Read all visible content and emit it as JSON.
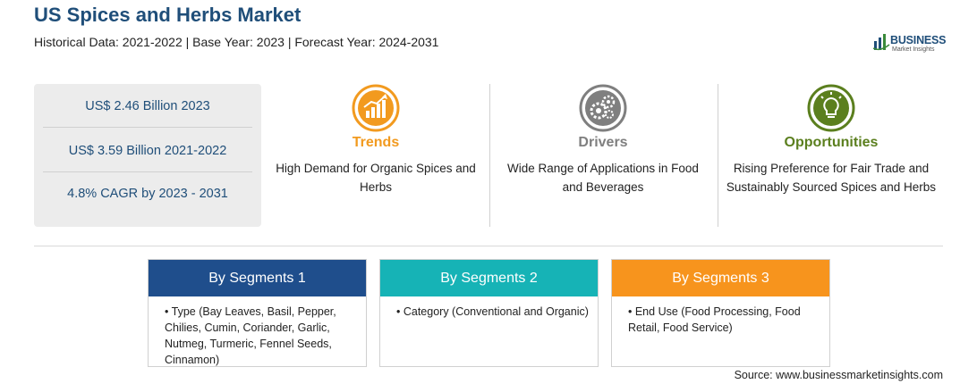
{
  "header": {
    "title": "US Spices and Herbs Market",
    "subtitle": "Historical Data: 2021-2022 | Base Year: 2023 | Forecast Year: 2024-2031"
  },
  "logo": {
    "name": "BUSINESS",
    "tagline": "Market Insights"
  },
  "stats": [
    "US$ 2.46 Billion 2023",
    "US$ 3.59 Billion 2021-2022",
    "4.8% CAGR by 2023 - 2031"
  ],
  "columns": [
    {
      "heading": "Trends",
      "text": "High Demand for Organic Spices and Herbs",
      "color": "#f29a1f",
      "icon": "chart-growth-icon"
    },
    {
      "heading": "Drivers",
      "text": "Wide Range of Applications in Food and Beverages",
      "color": "#7f7f7f",
      "icon": "gears-icon"
    },
    {
      "heading": "Opportunities",
      "text": "Rising Preference for Fair Trade and Sustainably Sourced Spices and Herbs",
      "color": "#5b7f1e",
      "icon": "lightbulb-icon"
    }
  ],
  "segments": [
    {
      "heading": "By Segments 1",
      "body": "• Type (Bay Leaves, Basil, Pepper, Chilies, Cumin, Coriander, Garlic, Nutmeg, Turmeric, Fennel Seeds, Cinnamon)",
      "color": "#1f4e8c"
    },
    {
      "heading": "By Segments 2",
      "body": "• Category (Conventional and Organic)",
      "color": "#16b3b6"
    },
    {
      "heading": "By Segments 3",
      "body": "• End Use (Food Processing, Food Retail, Food Service)",
      "color": "#f7941d"
    }
  ],
  "source": "Source: www.businessmarketinsights.com"
}
